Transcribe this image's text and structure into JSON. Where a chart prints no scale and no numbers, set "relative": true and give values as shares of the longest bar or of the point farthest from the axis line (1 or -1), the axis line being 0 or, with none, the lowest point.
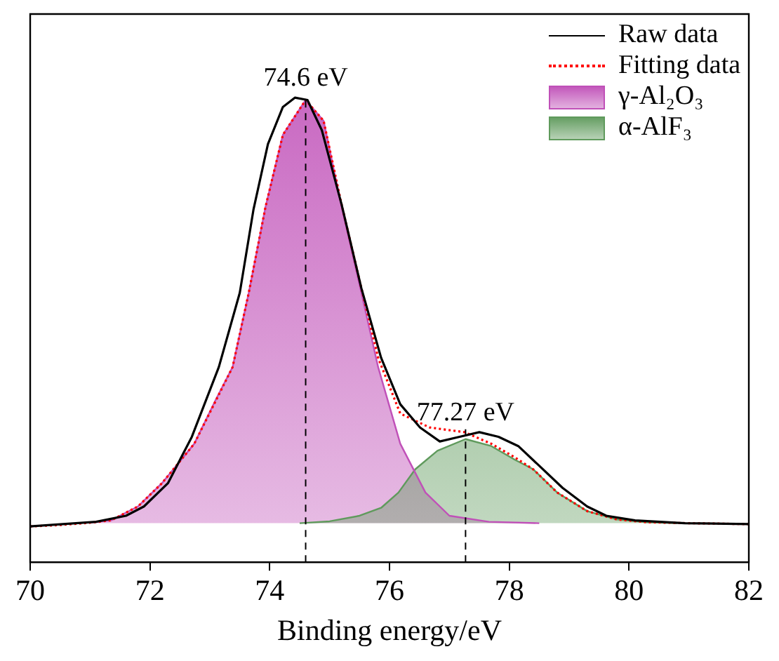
{
  "chart_data": {
    "type": "line",
    "relative": true,
    "xlabel": "Binding energy/eV",
    "xlim": [
      70,
      82
    ],
    "xticks": [
      70,
      72,
      74,
      76,
      78,
      80,
      82
    ],
    "legend": "top right",
    "ref_lines": [
      {
        "axis": "x",
        "value": 74.6,
        "label": "74.6 eV",
        "line_style": "dashed",
        "color": "#000000"
      },
      {
        "axis": "x",
        "value": 77.27,
        "label": "77.27 eV",
        "line_style": "dashed",
        "color": "#000000"
      }
    ],
    "series": [
      {
        "name": "Raw data",
        "type": "line",
        "color": "#000000",
        "x": [
          70,
          71.1,
          71.6,
          71.9,
          72.3,
          72.7,
          73.15,
          73.5,
          73.73,
          73.97,
          74.22,
          74.42,
          74.63,
          74.87,
          75.2,
          75.53,
          75.86,
          76.18,
          76.51,
          76.84,
          77.17,
          77.5,
          77.82,
          78.15,
          78.48,
          78.89,
          79.3,
          79.62,
          80.1,
          80.93,
          82
        ],
        "values": [
          0.077,
          0.087,
          0.1,
          0.12,
          0.17,
          0.27,
          0.42,
          0.58,
          0.76,
          0.9,
          0.98,
          1,
          0.995,
          0.93,
          0.77,
          0.59,
          0.44,
          0.34,
          0.29,
          0.26,
          0.27,
          0.28,
          0.27,
          0.25,
          0.21,
          0.16,
          0.12,
          0.1,
          0.09,
          0.084,
          0.082
        ]
      },
      {
        "name": "Fitting data",
        "type": "line",
        "line_style": "dotted",
        "color": "#ff0000",
        "x": [
          70,
          70.5,
          71,
          71.35,
          71.8,
          72.2,
          72.74,
          73.38,
          73.65,
          73.93,
          74.22,
          74.6,
          74.9,
          75.2,
          75.53,
          75.81,
          76.18,
          76.67,
          77.25,
          77.7,
          78.1,
          78.4,
          78.8,
          79.3,
          79.8,
          80.3,
          81,
          82
        ],
        "values": [
          0.077,
          0.08,
          0.085,
          0.09,
          0.12,
          0.17,
          0.255,
          0.42,
          0.58,
          0.765,
          0.92,
          0.995,
          0.95,
          0.77,
          0.59,
          0.44,
          0.32,
          0.29,
          0.28,
          0.255,
          0.225,
          0.2,
          0.15,
          0.11,
          0.092,
          0.086,
          0.084,
          0.082
        ]
      },
      {
        "name": "γ-Al₂O₃",
        "type": "area",
        "color": "#c050b8",
        "x": [
          71,
          71.35,
          71.8,
          72.2,
          72.74,
          73.1,
          73.38,
          73.65,
          73.93,
          74.22,
          74.6,
          74.9,
          75.2,
          75.53,
          75.81,
          76.18,
          76.6,
          77,
          77.66,
          78.5
        ],
        "values": [
          0.085,
          0.09,
          0.12,
          0.17,
          0.255,
          0.35,
          0.42,
          0.58,
          0.765,
          0.92,
          0.995,
          0.95,
          0.765,
          0.58,
          0.42,
          0.255,
          0.15,
          0.1,
          0.087,
          0.084
        ]
      },
      {
        "name": "α-AlF₃",
        "type": "area",
        "color": "#5f9a5c",
        "x": [
          74.5,
          75,
          75.5,
          75.86,
          76.15,
          76.43,
          76.8,
          77.27,
          77.7,
          78.1,
          78.4,
          78.8,
          79.3,
          79.8,
          80.3,
          80.8
        ],
        "values": [
          0.084,
          0.088,
          0.1,
          0.117,
          0.15,
          0.2,
          0.24,
          0.265,
          0.25,
          0.22,
          0.2,
          0.15,
          0.11,
          0.092,
          0.086,
          0.084
        ]
      }
    ]
  }
}
